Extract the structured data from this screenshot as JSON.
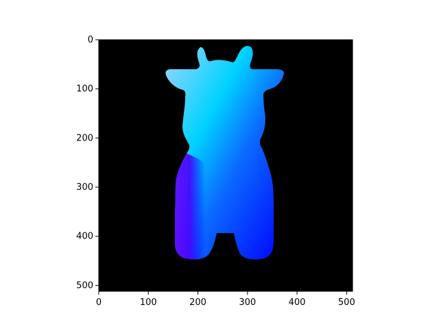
{
  "figure": {
    "background_color": "#ffffff",
    "axes_background_color": "#000000",
    "image_description_icon": "cow-silhouette-gradient"
  },
  "axes": {
    "xlim": [
      0,
      512
    ],
    "ylim": [
      512,
      0
    ],
    "x_ticks": [
      {
        "value": 0,
        "label": "0"
      },
      {
        "value": 100,
        "label": "100"
      },
      {
        "value": 200,
        "label": "200"
      },
      {
        "value": 300,
        "label": "300"
      },
      {
        "value": 400,
        "label": "400"
      },
      {
        "value": 500,
        "label": "500"
      }
    ],
    "y_ticks": [
      {
        "value": 0,
        "label": "0"
      },
      {
        "value": 100,
        "label": "100"
      },
      {
        "value": 200,
        "label": "200"
      },
      {
        "value": 300,
        "label": "300"
      },
      {
        "value": 400,
        "label": "400"
      },
      {
        "value": 500,
        "label": "500"
      }
    ]
  },
  "silhouette": {
    "colors": {
      "top_right": "#00e5ff",
      "middle": "#0b6bff",
      "bottom_left": "#6a00ff",
      "bottom_right": "#0000ff"
    }
  }
}
